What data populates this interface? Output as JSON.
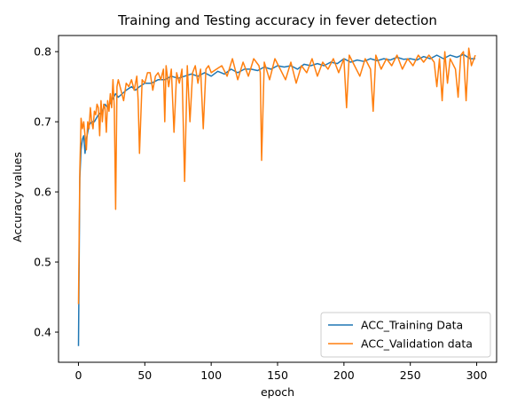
{
  "chart_data": {
    "type": "line",
    "title": "Training and Testing accuracy in fever detection",
    "xlabel": "epoch",
    "ylabel": "Accuracy values",
    "xlim": [
      -15,
      315
    ],
    "ylim": [
      0.357,
      0.823
    ],
    "xticks": [
      0,
      50,
      100,
      150,
      200,
      250,
      300
    ],
    "xtick_labels": [
      "0",
      "50",
      "100",
      "150",
      "200",
      "250",
      "300"
    ],
    "yticks": [
      0.4,
      0.5,
      0.6,
      0.7,
      0.8
    ],
    "ytick_labels": [
      "0.4",
      "0.5",
      "0.6",
      "0.7",
      "0.8"
    ],
    "legend_position": "lower right",
    "grid": false,
    "series": [
      {
        "name": "ACC_Training Data",
        "color": "#1f77b4",
        "x": [
          0,
          1,
          2,
          3,
          4,
          5,
          6,
          8,
          10,
          12,
          15,
          18,
          20,
          22,
          25,
          28,
          30,
          33,
          36,
          40,
          43,
          46,
          50,
          55,
          60,
          65,
          70,
          75,
          80,
          85,
          90,
          95,
          100,
          105,
          110,
          115,
          120,
          125,
          130,
          135,
          140,
          145,
          150,
          155,
          160,
          165,
          170,
          175,
          180,
          185,
          190,
          195,
          200,
          205,
          210,
          215,
          220,
          225,
          230,
          235,
          240,
          245,
          250,
          255,
          260,
          265,
          270,
          275,
          280,
          285,
          290,
          295,
          299
        ],
        "y": [
          0.38,
          0.62,
          0.66,
          0.675,
          0.68,
          0.655,
          0.675,
          0.695,
          0.7,
          0.7,
          0.71,
          0.715,
          0.725,
          0.72,
          0.73,
          0.74,
          0.735,
          0.74,
          0.745,
          0.75,
          0.745,
          0.75,
          0.755,
          0.755,
          0.76,
          0.76,
          0.765,
          0.762,
          0.765,
          0.768,
          0.765,
          0.77,
          0.765,
          0.772,
          0.768,
          0.775,
          0.77,
          0.775,
          0.775,
          0.773,
          0.778,
          0.775,
          0.78,
          0.778,
          0.78,
          0.775,
          0.782,
          0.78,
          0.783,
          0.78,
          0.785,
          0.783,
          0.79,
          0.785,
          0.788,
          0.786,
          0.79,
          0.787,
          0.79,
          0.788,
          0.792,
          0.789,
          0.79,
          0.788,
          0.793,
          0.79,
          0.795,
          0.79,
          0.795,
          0.792,
          0.796,
          0.79,
          0.79
        ]
      },
      {
        "name": "ACC_Validation data",
        "color": "#ff7f0e",
        "x": [
          0,
          1,
          2,
          3,
          4,
          5,
          6,
          7,
          8,
          9,
          10,
          11,
          12,
          13,
          14,
          15,
          16,
          17,
          18,
          19,
          20,
          21,
          22,
          23,
          24,
          25,
          26,
          27,
          28,
          29,
          30,
          32,
          34,
          36,
          38,
          40,
          42,
          44,
          45,
          46,
          48,
          50,
          52,
          54,
          56,
          58,
          60,
          62,
          64,
          65,
          66,
          68,
          70,
          72,
          74,
          76,
          78,
          80,
          82,
          84,
          86,
          88,
          90,
          92,
          94,
          96,
          98,
          100,
          104,
          108,
          112,
          116,
          120,
          124,
          128,
          132,
          136,
          137,
          138,
          140,
          144,
          148,
          152,
          156,
          160,
          164,
          168,
          172,
          176,
          180,
          184,
          188,
          192,
          196,
          200,
          202,
          204,
          208,
          212,
          216,
          220,
          222,
          224,
          228,
          232,
          236,
          240,
          244,
          248,
          252,
          256,
          260,
          264,
          268,
          270,
          272,
          274,
          276,
          278,
          280,
          284,
          286,
          288,
          290,
          292,
          294,
          296,
          299
        ],
        "y": [
          0.44,
          0.63,
          0.705,
          0.69,
          0.7,
          0.68,
          0.66,
          0.7,
          0.69,
          0.72,
          0.7,
          0.69,
          0.715,
          0.71,
          0.725,
          0.72,
          0.68,
          0.73,
          0.7,
          0.725,
          0.72,
          0.685,
          0.73,
          0.715,
          0.74,
          0.72,
          0.76,
          0.72,
          0.575,
          0.75,
          0.76,
          0.745,
          0.73,
          0.755,
          0.75,
          0.76,
          0.745,
          0.765,
          0.73,
          0.655,
          0.76,
          0.755,
          0.77,
          0.77,
          0.745,
          0.765,
          0.77,
          0.76,
          0.775,
          0.7,
          0.78,
          0.75,
          0.775,
          0.685,
          0.77,
          0.755,
          0.775,
          0.615,
          0.78,
          0.7,
          0.77,
          0.78,
          0.755,
          0.775,
          0.69,
          0.775,
          0.78,
          0.77,
          0.775,
          0.78,
          0.765,
          0.79,
          0.76,
          0.785,
          0.765,
          0.79,
          0.78,
          0.77,
          0.645,
          0.785,
          0.76,
          0.79,
          0.775,
          0.76,
          0.785,
          0.755,
          0.78,
          0.77,
          0.79,
          0.765,
          0.785,
          0.775,
          0.79,
          0.77,
          0.79,
          0.72,
          0.795,
          0.78,
          0.765,
          0.79,
          0.775,
          0.715,
          0.795,
          0.775,
          0.79,
          0.78,
          0.795,
          0.775,
          0.79,
          0.78,
          0.795,
          0.785,
          0.795,
          0.785,
          0.75,
          0.79,
          0.73,
          0.8,
          0.755,
          0.79,
          0.775,
          0.735,
          0.795,
          0.8,
          0.73,
          0.805,
          0.78,
          0.795
        ]
      }
    ]
  }
}
